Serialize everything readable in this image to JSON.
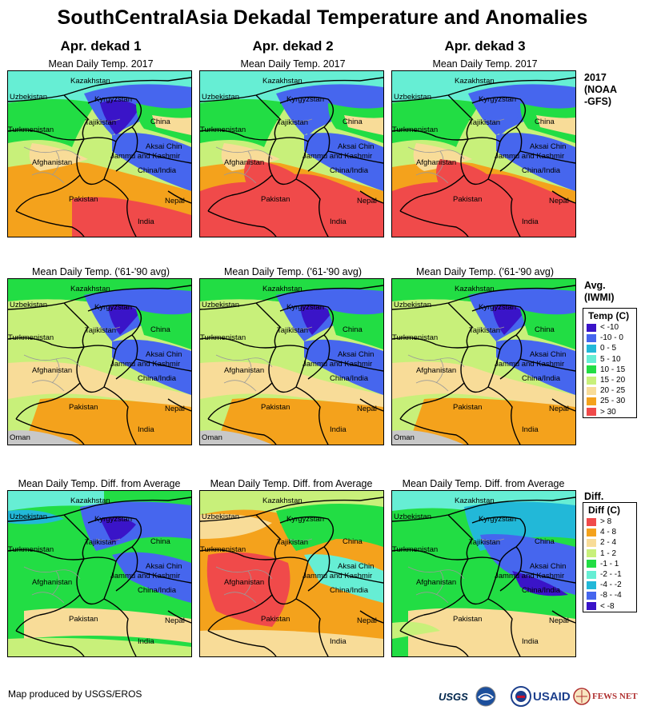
{
  "title": "SouthCentralAsia Dekadal Temperature and Anomalies",
  "columns": [
    "Apr. dekad 1",
    "Apr. dekad 2",
    "Apr. dekad 3"
  ],
  "rows": [
    {
      "map_title": "Mean Daily Temp. 2017",
      "side_label": "2017\n(NOAA\n-GFS)"
    },
    {
      "map_title": "Mean Daily Temp. ('61-'90 avg)",
      "side_label": "Avg.\n(IWMI)"
    },
    {
      "map_title": "Mean Daily Temp. Diff. from Average",
      "side_label": "Diff."
    }
  ],
  "place_labels": {
    "kazakhstan": "Kazakhstan",
    "uzbekistan": "Uzbekistan",
    "kyrgyzstan": "Kyrgyzstan",
    "turkmenistan": "Turkmenistan",
    "tajikistan": "Tajikistan",
    "china": "China",
    "afghanistan": "Afghanistan",
    "aksai_chin": "Aksai Chin",
    "jammu_kashmir": "Jammu and Kashmir",
    "china_india": "China/India",
    "pakistan": "Pakistan",
    "nepal": "Nepal",
    "india": "India",
    "oman": "Oman"
  },
  "temp_legend": {
    "title": "Temp (C)",
    "items": [
      {
        "label": "< -10",
        "color": "#3a14c8"
      },
      {
        "label": "-10 - 0",
        "color": "#4666ee"
      },
      {
        "label": "0 - 5",
        "color": "#22b8d8"
      },
      {
        "label": "5 - 10",
        "color": "#66eed4"
      },
      {
        "label": "10 - 15",
        "color": "#22dd44"
      },
      {
        "label": "15 - 20",
        "color": "#c8f07a"
      },
      {
        "label": "20 - 25",
        "color": "#f8dc98"
      },
      {
        "label": "25 - 30",
        "color": "#f4a21c"
      },
      {
        "label": "> 30",
        "color": "#f04a4a"
      }
    ]
  },
  "diff_legend": {
    "title": "Diff (C)",
    "items": [
      {
        "label": "> 8",
        "color": "#f04a4a"
      },
      {
        "label": "4 - 8",
        "color": "#f4a21c"
      },
      {
        "label": "2 - 4",
        "color": "#f8dc98"
      },
      {
        "label": "1 - 2",
        "color": "#c8f07a"
      },
      {
        "label": "-1 - 1",
        "color": "#22dd44"
      },
      {
        "label": "-2 - -1",
        "color": "#66eed4"
      },
      {
        "label": "-4 - -2",
        "color": "#22b8d8"
      },
      {
        "label": "-8 - -4",
        "color": "#4666ee"
      },
      {
        "label": "< -8",
        "color": "#3a14c8"
      }
    ]
  },
  "footer": "Map produced by USGS/EROS",
  "logos": [
    "USGS",
    "NOAA",
    "USAID",
    "FEWS NET"
  ]
}
